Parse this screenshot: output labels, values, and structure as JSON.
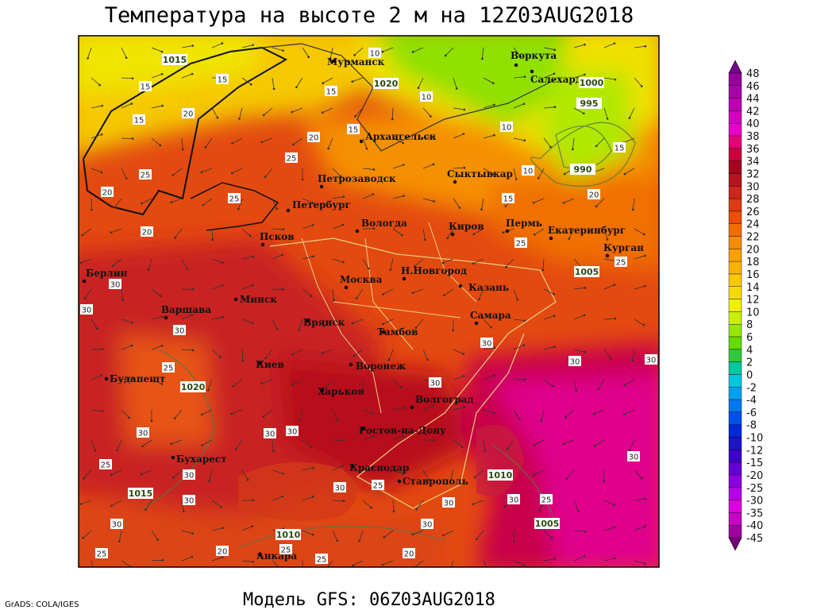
{
  "title": "Температура на высоте 2 м на 12Z03AUG2018",
  "subtitle": "Модель GFS: 06Z03AUG2018",
  "credit": "GrADS: COLA/IGES",
  "cities": [
    "Мурманск",
    "Воркута",
    "Салехард",
    "Архангельск",
    "Петрозаводск",
    "Сыктывкар",
    "Петербург",
    "Вологда",
    "Киров",
    "Пермь",
    "Екатеринбург",
    "Курган",
    "Псков",
    "Берлин",
    "Н.Новгород",
    "Казань",
    "Москва",
    "Минск",
    "Варшава",
    "Самара",
    "Брянск",
    "Тамбов",
    "Киев",
    "Воронеж",
    "Будапешт",
    "Харьков",
    "Волгоград",
    "Ростов-на-Дону",
    "Бухарест",
    "Краснодар",
    "Ставрополь",
    "Анкара"
  ],
  "isobar_labels": [
    1015,
    1020,
    1000,
    995,
    990,
    1005,
    1020,
    1015,
    1010,
    1010,
    1005
  ],
  "temperature_labels": [
    15,
    15,
    15,
    20,
    10,
    15,
    10,
    20,
    15,
    10,
    10,
    15,
    20,
    15,
    25,
    25,
    25,
    25,
    20,
    25,
    20,
    30,
    30,
    30,
    25,
    30,
    30,
    30,
    30,
    30,
    30,
    30,
    25,
    30,
    30,
    30,
    30,
    25,
    30,
    30,
    25,
    30,
    30,
    20,
    25,
    25,
    20,
    25
  ],
  "colorbar": {
    "labels": [
      48,
      46,
      44,
      42,
      40,
      38,
      36,
      34,
      32,
      30,
      28,
      26,
      24,
      22,
      20,
      18,
      16,
      14,
      12,
      10,
      8,
      6,
      4,
      2,
      0,
      -2,
      -4,
      -6,
      -8,
      -10,
      -12,
      -15,
      -20,
      -25,
      -30,
      -35,
      -40,
      -45
    ],
    "colors": [
      "#7a0090",
      "#96009c",
      "#aa00aa",
      "#be00b4",
      "#d200be",
      "#e600c8",
      "#e6007a",
      "#c8003c",
      "#a5001e",
      "#b41420",
      "#c8281e",
      "#dc3c14",
      "#e6500a",
      "#f06e00",
      "#f58c00",
      "#faa000",
      "#fab400",
      "#fac800",
      "#f5dc00",
      "#f0f000",
      "#c8f000",
      "#96e600",
      "#64dc00",
      "#32c83c",
      "#00c8a0",
      "#00c8dc",
      "#00a0f0",
      "#0078f0",
      "#0050f0",
      "#0028dc",
      "#1e14c8",
      "#3c00c8",
      "#6400d2",
      "#8c00dc",
      "#b400e6",
      "#dc00dc",
      "#c800c8",
      "#a000a0",
      "#780078"
    ]
  }
}
